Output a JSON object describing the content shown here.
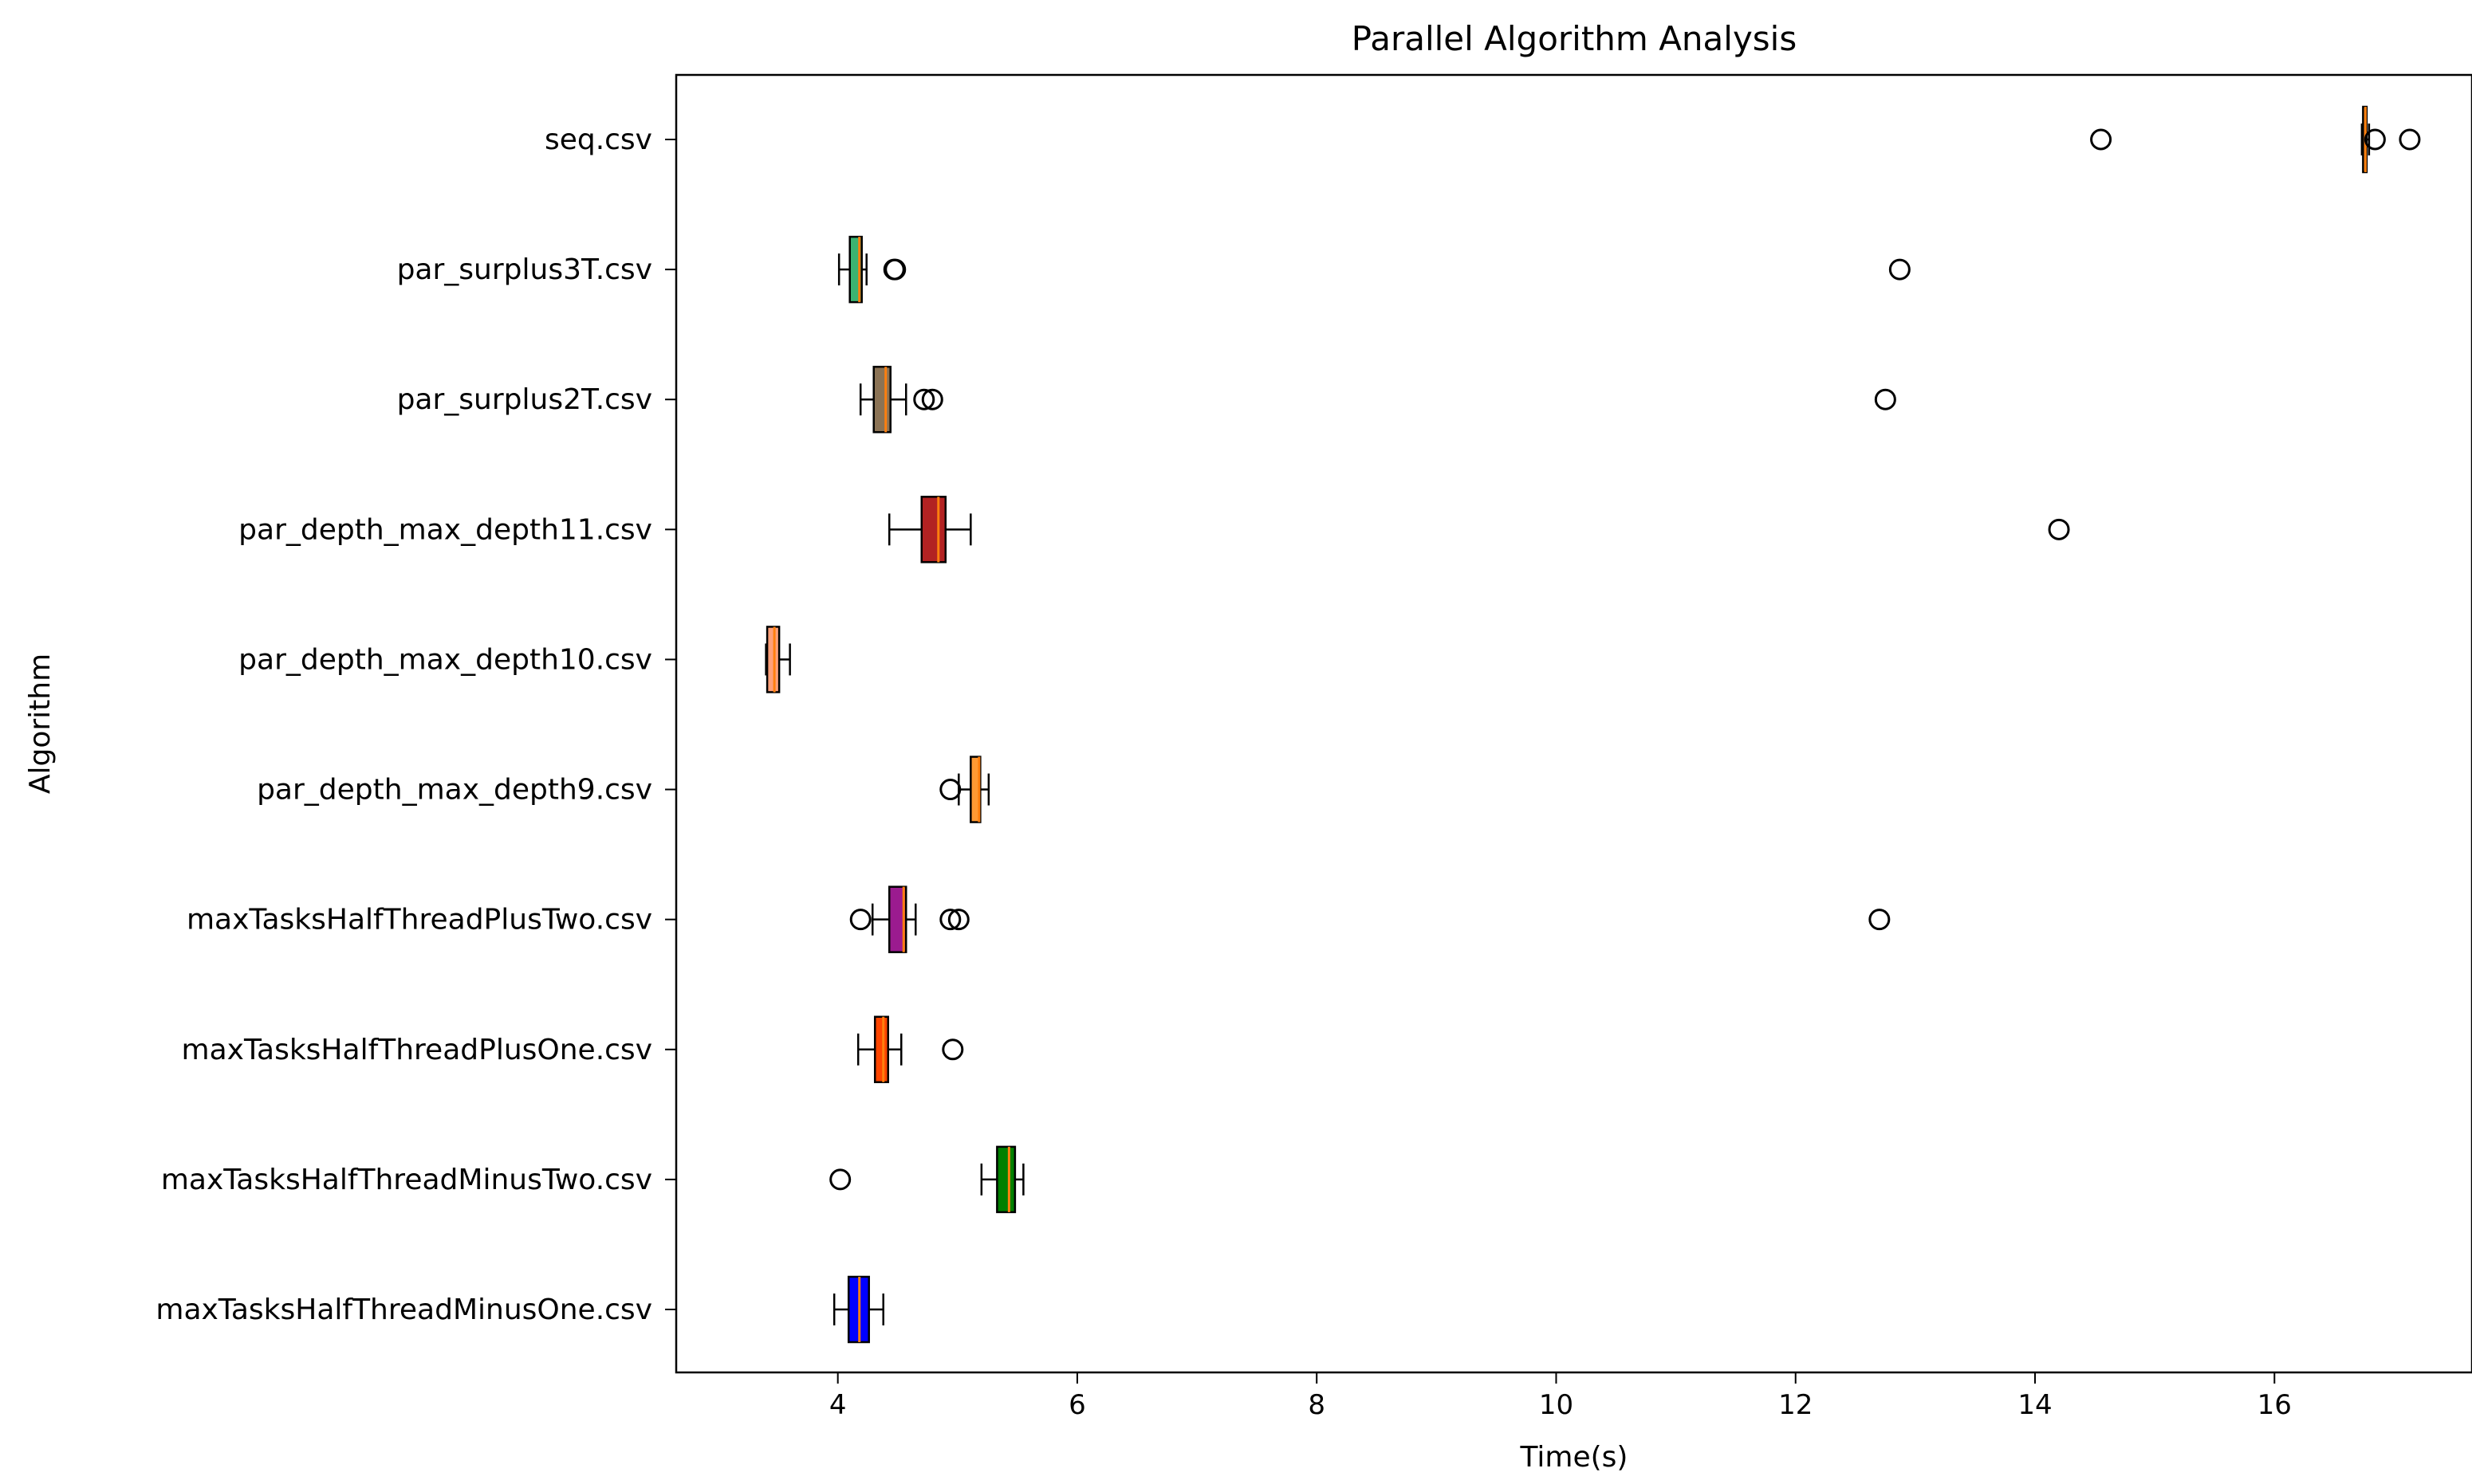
{
  "chart_data": {
    "type": "boxplot",
    "orientation": "horizontal",
    "title": "Parallel Algorithm Analysis",
    "xlabel": "Time(s)",
    "ylabel": "Algorithm",
    "xlim": [
      2.65,
      17.65
    ],
    "xticks": [
      4,
      6,
      8,
      10,
      12,
      14,
      16
    ],
    "grid": false,
    "legend": "none",
    "categories": [
      "maxTasksHalfThreadMinusOne.csv",
      "maxTasksHalfThreadMinusTwo.csv",
      "maxTasksHalfThreadPlusOne.csv",
      "maxTasksHalfThreadPlusTwo.csv",
      "par_depth_max_depth9.csv",
      "par_depth_max_depth10.csv",
      "par_depth_max_depth11.csv",
      "par_surplus2T.csv",
      "par_surplus3T.csv",
      "seq.csv"
    ],
    "boxes": [
      {
        "whislo": 3.97,
        "q1": 4.09,
        "med": 4.18,
        "q3": 4.26,
        "whishi": 4.38,
        "fliers": [],
        "color": "#0000ff"
      },
      {
        "whislo": 5.2,
        "q1": 5.33,
        "med": 5.43,
        "q3": 5.48,
        "whishi": 5.55,
        "fliers": [
          4.02
        ],
        "color": "#008000"
      },
      {
        "whislo": 4.17,
        "q1": 4.31,
        "med": 4.38,
        "q3": 4.42,
        "whishi": 4.53,
        "fliers": [
          4.96
        ],
        "color": "#ff4500"
      },
      {
        "whislo": 4.29,
        "q1": 4.43,
        "med": 4.55,
        "q3": 4.57,
        "whishi": 4.65,
        "fliers": [
          4.19,
          4.94,
          5.01,
          12.7
        ],
        "color": "#9b1b8f"
      },
      {
        "whislo": 5.01,
        "q1": 5.11,
        "med": 5.18,
        "q3": 5.19,
        "whishi": 5.26,
        "fliers": [
          4.94
        ],
        "color": "#ff9933"
      },
      {
        "whislo": 3.4,
        "q1": 3.41,
        "med": 3.47,
        "q3": 3.51,
        "whishi": 3.6,
        "fliers": [],
        "color": "#ffa07a"
      },
      {
        "whislo": 4.43,
        "q1": 4.7,
        "med": 4.84,
        "q3": 4.9,
        "whishi": 5.11,
        "fliers": [
          14.2
        ],
        "color": "#b22222"
      },
      {
        "whislo": 4.19,
        "q1": 4.3,
        "med": 4.4,
        "q3": 4.44,
        "whishi": 4.57,
        "fliers": [
          4.72,
          4.79,
          12.75
        ],
        "color": "#8b7355"
      },
      {
        "whislo": 4.01,
        "q1": 4.1,
        "med": 4.18,
        "q3": 4.2,
        "whishi": 4.24,
        "fliers": [
          4.47,
          4.48,
          12.87
        ],
        "color": "#3cb371"
      },
      {
        "whislo": 16.73,
        "q1": 16.74,
        "med": 16.76,
        "q3": 16.77,
        "whishi": 16.79,
        "fliers": [
          14.55,
          16.84,
          17.13
        ],
        "color": "#ff9933"
      }
    ]
  }
}
